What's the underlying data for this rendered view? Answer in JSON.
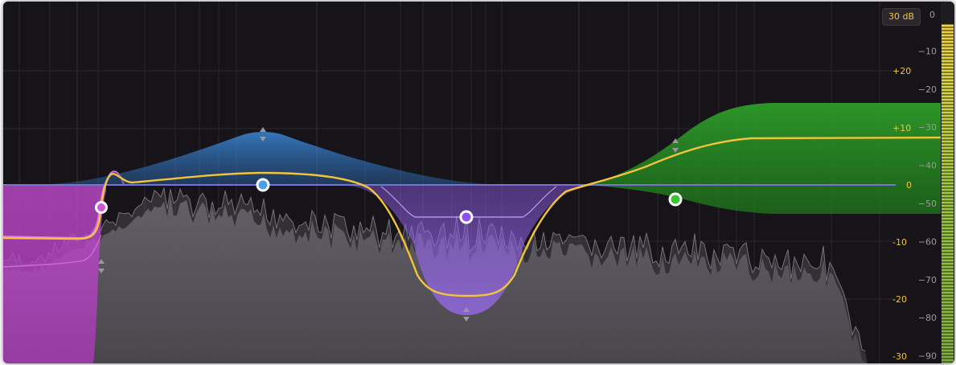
{
  "range_button": {
    "label": "30 dB"
  },
  "meter": {
    "top_label": "0",
    "labels": [
      "−10",
      "−20",
      "−30",
      "−40",
      "−50",
      "−60",
      "−70",
      "−80",
      "−90"
    ],
    "values_db": [
      -10,
      -20,
      -30,
      -40,
      -50,
      -60,
      -70,
      -80,
      -90
    ],
    "peak_db": -3
  },
  "gain_scale": {
    "labels": [
      "+20",
      "+10",
      "0",
      "-10",
      "-20",
      "-30"
    ],
    "values_db": [
      20,
      10,
      0,
      -10,
      -20,
      -30
    ]
  },
  "colors": {
    "background": "#161418",
    "curve": "#f2c43c",
    "gain_scale": "#f2c43c",
    "meter_scale": "#9a9a9a",
    "band_low_cut": "#c94bd6",
    "band_bell_boost": "#3c8ee0",
    "band_bell_cut": "#8a5ae0",
    "band_high_shelf": "#36b62c",
    "spectrum": "#5b575d"
  },
  "bands": [
    {
      "id": "low-cut",
      "type": "low cut",
      "color": "#c94bd6",
      "gain_db": -10
    },
    {
      "id": "bell-boost",
      "type": "bell",
      "color": "#3c8ee0",
      "gain_db": 10
    },
    {
      "id": "bell-cut",
      "type": "bell",
      "color": "#8a5ae0",
      "gain_db": -20
    },
    {
      "id": "high-shelf",
      "type": "high shelf",
      "color": "#36b62c",
      "gain_db": 9
    }
  ]
}
